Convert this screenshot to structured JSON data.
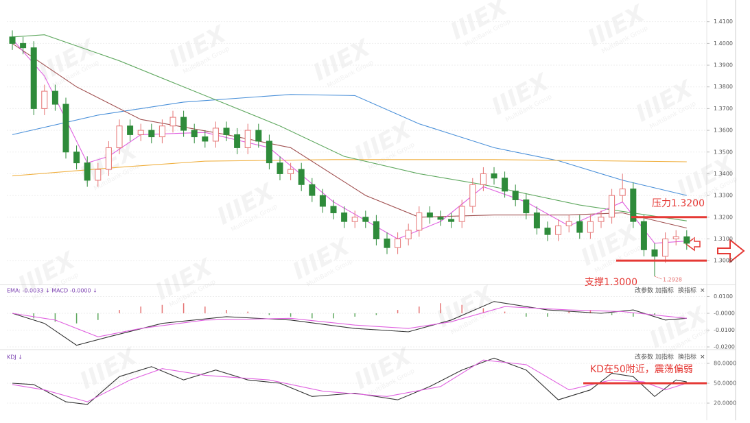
{
  "chart_data": [
    {
      "type": "candlestick",
      "open": [
        1.403,
        1.4,
        1.398,
        1.37,
        1.378,
        1.372,
        1.35,
        1.345,
        1.337,
        1.342,
        1.352,
        1.362,
        1.358,
        1.36,
        1.357,
        1.362,
        1.366,
        1.36,
        1.357,
        1.355,
        1.361,
        1.358,
        1.352,
        1.36,
        1.355,
        1.345,
        1.34,
        1.342,
        1.335,
        1.33,
        1.325,
        1.322,
        1.318,
        1.32,
        1.318,
        1.31,
        1.306,
        1.31,
        1.314,
        1.322,
        1.32,
        1.319,
        1.318,
        1.325,
        1.335,
        1.34,
        1.338,
        1.332,
        1.328,
        1.322,
        1.315,
        1.312,
        1.316,
        1.318,
        1.313,
        1.318,
        1.32,
        1.33,
        1.333,
        1.318,
        1.305,
        1.302,
        1.31,
        1.311
      ],
      "high": [
        1.406,
        1.403,
        1.401,
        1.381,
        1.381,
        1.375,
        1.353,
        1.348,
        1.345,
        1.355,
        1.365,
        1.365,
        1.363,
        1.363,
        1.365,
        1.369,
        1.369,
        1.363,
        1.36,
        1.364,
        1.364,
        1.361,
        1.363,
        1.363,
        1.358,
        1.348,
        1.345,
        1.345,
        1.338,
        1.333,
        1.328,
        1.325,
        1.323,
        1.323,
        1.321,
        1.313,
        1.313,
        1.317,
        1.325,
        1.325,
        1.323,
        1.322,
        1.328,
        1.338,
        1.343,
        1.343,
        1.341,
        1.335,
        1.331,
        1.325,
        1.318,
        1.319,
        1.321,
        1.321,
        1.321,
        1.323,
        1.333,
        1.34,
        1.336,
        1.321,
        1.308,
        1.313,
        1.314,
        1.314
      ],
      "low": [
        1.397,
        1.395,
        1.367,
        1.367,
        1.369,
        1.347,
        1.342,
        1.334,
        1.334,
        1.339,
        1.349,
        1.355,
        1.355,
        1.354,
        1.354,
        1.359,
        1.357,
        1.354,
        1.352,
        1.352,
        1.355,
        1.349,
        1.349,
        1.352,
        1.342,
        1.337,
        1.337,
        1.332,
        1.327,
        1.322,
        1.319,
        1.315,
        1.315,
        1.315,
        1.307,
        1.303,
        1.303,
        1.307,
        1.311,
        1.317,
        1.316,
        1.315,
        1.315,
        1.322,
        1.332,
        1.335,
        1.329,
        1.325,
        1.319,
        1.312,
        1.309,
        1.309,
        1.313,
        1.31,
        1.31,
        1.315,
        1.317,
        1.327,
        1.315,
        1.302,
        1.2928,
        1.299,
        1.307,
        1.305
      ],
      "close": [
        1.4,
        1.398,
        1.37,
        1.378,
        1.372,
        1.35,
        1.345,
        1.337,
        1.342,
        1.352,
        1.362,
        1.358,
        1.36,
        1.357,
        1.362,
        1.366,
        1.36,
        1.357,
        1.355,
        1.361,
        1.358,
        1.352,
        1.36,
        1.355,
        1.345,
        1.34,
        1.342,
        1.335,
        1.33,
        1.325,
        1.322,
        1.318,
        1.32,
        1.318,
        1.31,
        1.306,
        1.31,
        1.314,
        1.322,
        1.32,
        1.319,
        1.318,
        1.325,
        1.335,
        1.34,
        1.338,
        1.332,
        1.328,
        1.322,
        1.315,
        1.312,
        1.316,
        1.318,
        1.313,
        1.318,
        1.32,
        1.33,
        1.333,
        1.318,
        1.305,
        1.302,
        1.31,
        1.311,
        1.308
      ],
      "up_color": "#e57373",
      "down_color": "#2e8b3a",
      "series": [
        {
          "color": "#4a90d9",
          "x": [
            0,
            8,
            16,
            26,
            32,
            38,
            45,
            51,
            57,
            63
          ],
          "values": [
            1.358,
            1.367,
            1.373,
            1.3765,
            1.376,
            1.363,
            1.352,
            1.346,
            1.337,
            1.33
          ]
        },
        {
          "color": "#f0b040",
          "x": [
            0,
            10,
            18,
            30,
            45,
            63
          ],
          "values": [
            1.339,
            1.343,
            1.3458,
            1.3465,
            1.3465,
            1.3455
          ]
        },
        {
          "color": "#5fa85f",
          "x": [
            0,
            3,
            10,
            18,
            25,
            31,
            38,
            44,
            53,
            63
          ],
          "values": [
            1.403,
            1.404,
            1.392,
            1.376,
            1.362,
            1.348,
            1.34,
            1.335,
            1.3256,
            1.3183
          ]
        },
        {
          "color": "#a05050",
          "x": [
            0,
            6,
            12,
            20,
            26,
            33,
            38,
            45,
            52,
            57,
            63
          ],
          "values": [
            1.4,
            1.38,
            1.365,
            1.358,
            1.352,
            1.33,
            1.32,
            1.321,
            1.321,
            1.322,
            1.315
          ]
        },
        {
          "color": "#e060e0",
          "x": [
            0,
            3,
            6,
            7,
            9,
            12,
            18,
            24,
            30,
            36,
            40,
            44,
            48,
            52,
            57,
            60,
            63
          ],
          "values": [
            1.402,
            1.385,
            1.355,
            1.345,
            1.348,
            1.358,
            1.359,
            1.352,
            1.327,
            1.31,
            1.318,
            1.334,
            1.327,
            1.316,
            1.327,
            1.308,
            1.309
          ]
        }
      ],
      "ylim": [
        1.289,
        1.42
      ],
      "yticks": [
        {
          "value": 1.3,
          "label": "1.3000"
        },
        {
          "value": 1.31,
          "label": "1.3100"
        },
        {
          "value": 1.32,
          "label": "1.3200"
        },
        {
          "value": 1.33,
          "label": "1.3300"
        },
        {
          "value": 1.34,
          "label": "1.3400"
        },
        {
          "value": 1.35,
          "label": "1.3500"
        },
        {
          "value": 1.36,
          "label": "1.3600"
        },
        {
          "value": 1.37,
          "label": "1.3700"
        },
        {
          "value": 1.38,
          "label": "1.3800"
        },
        {
          "value": 1.39,
          "label": "1.3900"
        },
        {
          "value": 1.4,
          "label": "1.4000"
        },
        {
          "value": 1.41,
          "label": "1.4100"
        }
      ],
      "grid": true,
      "annotations": [
        {
          "text": "压力1.3200",
          "value": 1.32,
          "color": "#e53935"
        },
        {
          "text": "支撑1.3000",
          "value": 1.3,
          "color": "#e53935"
        }
      ]
    },
    {
      "type": "macd",
      "header": "EMA: -0.0033 ↓  MACD -0.0000 ↓",
      "histogram": {
        "x": [
          0,
          2,
          4,
          6,
          8,
          10,
          12,
          14,
          16,
          18,
          20,
          22,
          24,
          26,
          28,
          30,
          32,
          34,
          36,
          38,
          40,
          42,
          44,
          46,
          48,
          50,
          52,
          54,
          56,
          58,
          60,
          62
        ],
        "values": [
          0.0,
          -0.003,
          -0.005,
          -0.006,
          -0.004,
          0.002,
          0.004,
          0.005,
          0.006,
          0.004,
          0.002,
          0.001,
          -0.001,
          -0.002,
          -0.003,
          -0.003,
          -0.002,
          -0.001,
          0.002,
          0.004,
          0.006,
          0.005,
          0.003,
          0.001,
          -0.002,
          -0.002,
          0.001,
          0.002,
          -0.001,
          -0.002,
          -0.001,
          0.0
        ],
        "up_color": "#e57373",
        "down_color": "#5fa85f"
      },
      "series": [
        {
          "color": "#333333",
          "x": [
            0,
            3,
            6,
            9,
            14,
            20,
            26,
            32,
            37,
            41,
            45,
            50,
            55,
            58,
            61,
            63
          ],
          "values": [
            0,
            -0.006,
            -0.019,
            -0.014,
            -0.006,
            -0.002,
            -0.004,
            -0.009,
            -0.011,
            -0.004,
            0.007,
            0.002,
            0.0,
            0.002,
            -0.004,
            -0.003
          ]
        },
        {
          "color": "#e060e0",
          "x": [
            0,
            4,
            8,
            12,
            18,
            26,
            32,
            37,
            41,
            46,
            52,
            57,
            60,
            63
          ],
          "values": [
            0,
            -0.004,
            -0.014,
            -0.009,
            -0.004,
            -0.003,
            -0.007,
            -0.009,
            -0.005,
            0.004,
            0.002,
            0.001,
            -0.001,
            -0.003
          ]
        }
      ],
      "ylim": [
        -0.0208,
        0.0159
      ],
      "yticks": [
        {
          "value": 0.01,
          "label": "0.0100"
        },
        {
          "value": 0,
          "label": "-0.0000"
        },
        {
          "value": -0.01,
          "label": "-0.0100"
        },
        {
          "value": -0.02,
          "label": "-0.0200"
        }
      ],
      "grid": true
    },
    {
      "type": "line",
      "header": "KDJ ↓",
      "series": [
        {
          "color": "#333333",
          "x": [
            0,
            2,
            5,
            7,
            10,
            13,
            16,
            19,
            22,
            25,
            28,
            32,
            36,
            39,
            42,
            45,
            48,
            51,
            54,
            56,
            58,
            60,
            62,
            63
          ],
          "values": [
            50,
            48,
            22,
            18,
            60,
            75,
            55,
            70,
            55,
            50,
            30,
            35,
            25,
            45,
            70,
            88,
            70,
            25,
            40,
            65,
            60,
            30,
            55,
            52
          ]
        },
        {
          "color": "#e060e0",
          "x": [
            0,
            3,
            7,
            11,
            14,
            18,
            24,
            29,
            35,
            40,
            44,
            48,
            52,
            56,
            59,
            61,
            63
          ],
          "values": [
            48,
            40,
            22,
            55,
            72,
            62,
            55,
            38,
            30,
            45,
            85,
            78,
            40,
            55,
            52,
            40,
            50
          ]
        }
      ],
      "ylim": [
        7.6,
        95.5
      ],
      "yticks": [
        {
          "value": 80,
          "label": "80.0000"
        },
        {
          "value": 50,
          "label": "50.0000"
        },
        {
          "value": 20,
          "label": "20.0000"
        }
      ],
      "grid": true,
      "annotations": [
        {
          "text": "KD在50附近，震荡偏弱",
          "value": 50,
          "color": "#e53935"
        }
      ]
    }
  ],
  "toolbar": [
    "改参数",
    "加指标",
    "换指标",
    "✕"
  ],
  "watermark": {
    "brand": "IIIEX",
    "group": "MultiBank Group"
  }
}
